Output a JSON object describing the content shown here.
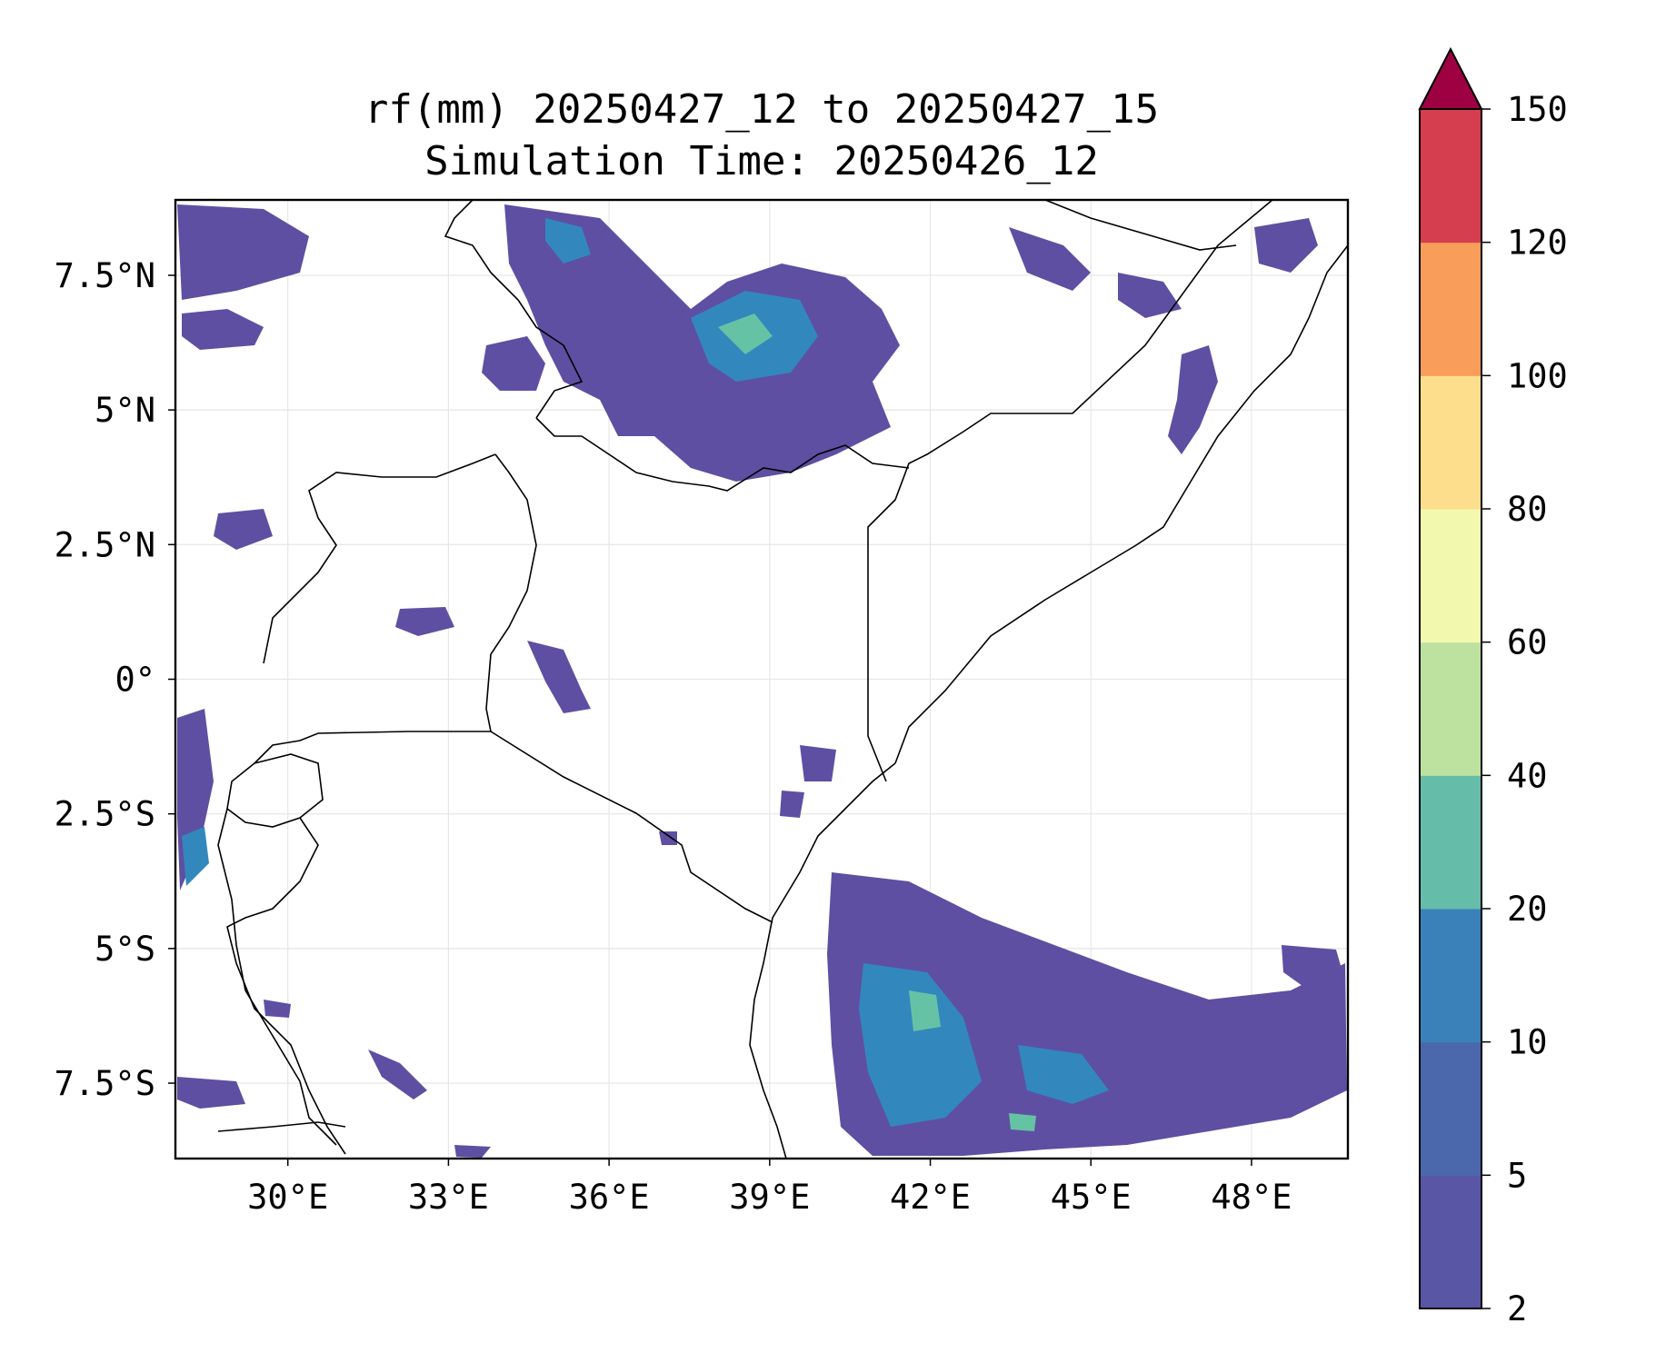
{
  "title": {
    "line1": "rf(mm) 20250427_12 to 20250427_15",
    "line2": "Simulation Time: 20250426_12"
  },
  "map": {
    "lon_range": [
      27.9,
      49.8
    ],
    "lat_range": [
      -8.9,
      8.9
    ],
    "lon_ticks": [
      {
        "value": 30,
        "label": "30°E"
      },
      {
        "value": 33,
        "label": "33°E"
      },
      {
        "value": 36,
        "label": "36°E"
      },
      {
        "value": 39,
        "label": "39°E"
      },
      {
        "value": 42,
        "label": "42°E"
      },
      {
        "value": 45,
        "label": "45°E"
      },
      {
        "value": 48,
        "label": "48°E"
      }
    ],
    "lat_ticks": [
      {
        "value": 7.5,
        "label": "7.5°N"
      },
      {
        "value": 5,
        "label": "5°N"
      },
      {
        "value": 2.5,
        "label": "2.5°N"
      },
      {
        "value": 0,
        "label": "0°"
      },
      {
        "value": -2.5,
        "label": "2.5°S"
      },
      {
        "value": -5,
        "label": "5°S"
      },
      {
        "value": -7.5,
        "label": "7.5°S"
      }
    ],
    "gridlines": true,
    "field_colors": [
      "#5e4fa2",
      "#3288bd",
      "#66c2a5",
      "#abdda4"
    ]
  },
  "colorbar": {
    "levels": [
      {
        "value": 2,
        "label": "2"
      },
      {
        "value": 5,
        "label": "5"
      },
      {
        "value": 10,
        "label": "10"
      },
      {
        "value": 20,
        "label": "20"
      },
      {
        "value": 40,
        "label": "40"
      },
      {
        "value": 60,
        "label": "60"
      },
      {
        "value": 80,
        "label": "80"
      },
      {
        "value": 100,
        "label": "100"
      },
      {
        "value": 120,
        "label": "120"
      },
      {
        "value": 150,
        "label": "150"
      }
    ],
    "colors": [
      "#5956a5",
      "#4b68ad",
      "#3b81b9",
      "#64bca9",
      "#bde29f",
      "#f2f9af",
      "#fdde8c",
      "#f99d5a",
      "#d53e4f"
    ],
    "extend_color": "#9e0142",
    "extend": "max"
  }
}
